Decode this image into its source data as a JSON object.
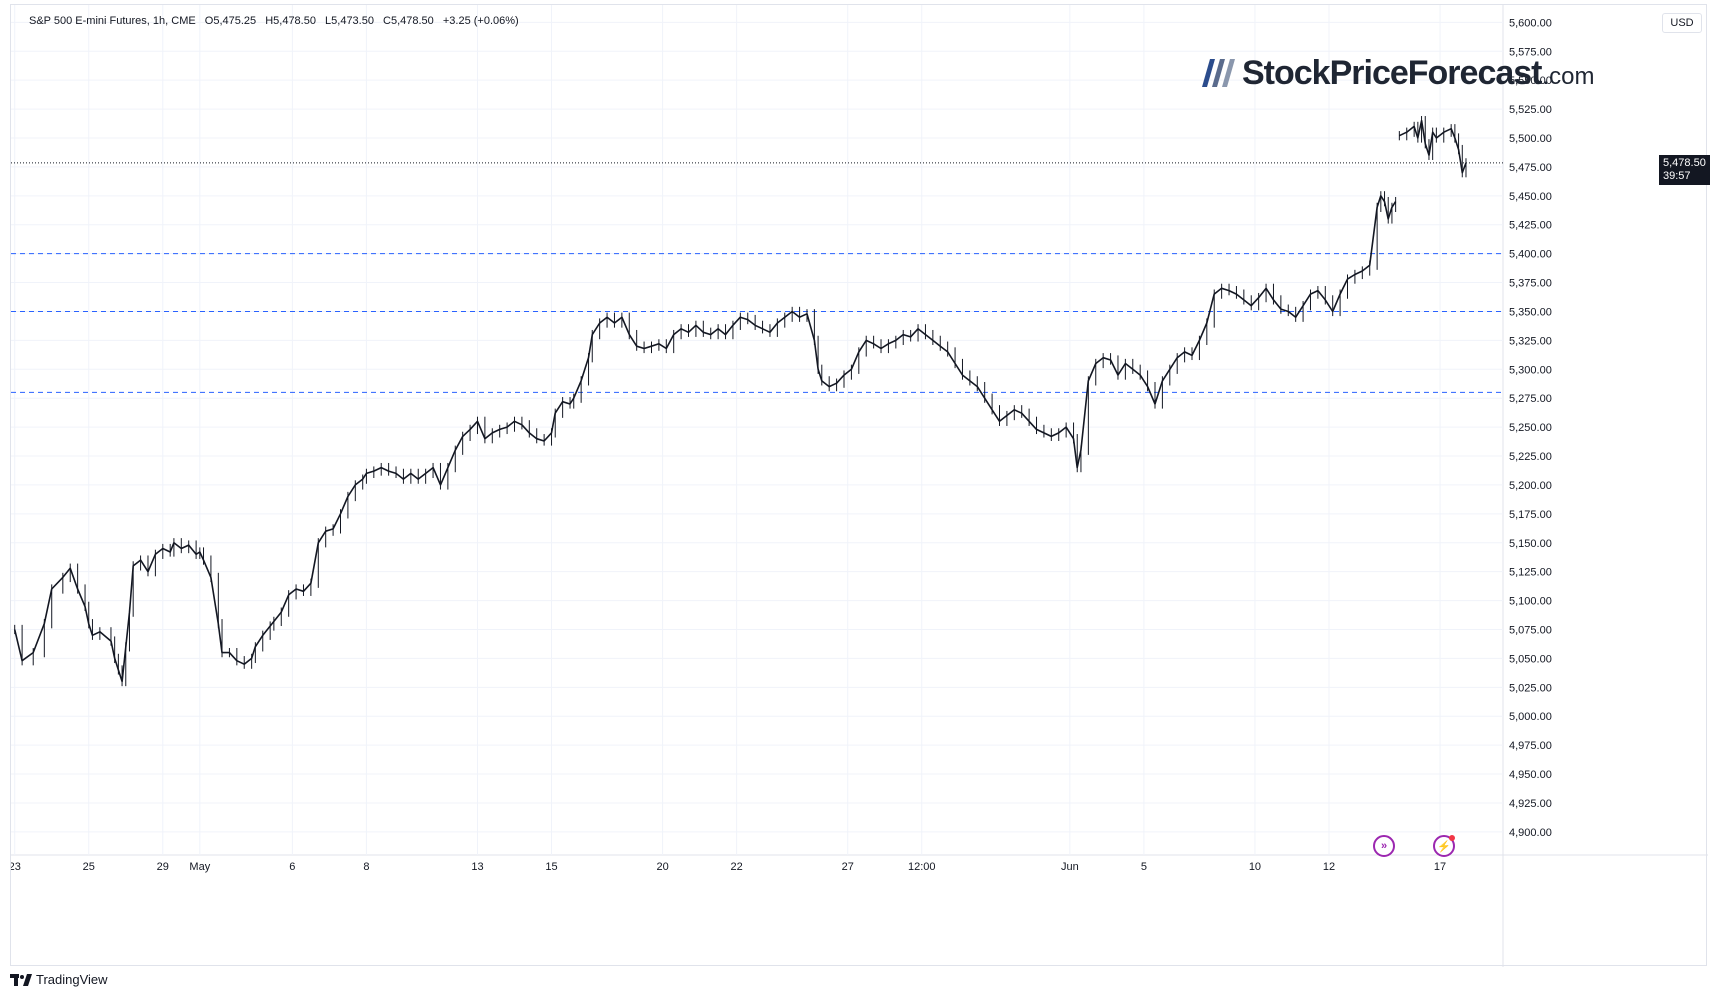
{
  "header": {
    "instrument": "S&P 500 E-mini Futures, 1h, CME",
    "open": "O5,475.25",
    "high": "H5,478.50",
    "low": "L5,473.50",
    "close": "C5,478.50",
    "change": "+3.25 (+0.06%)"
  },
  "currency": "USD",
  "brand": {
    "name": "StockPriceForecast",
    "tld": ".com"
  },
  "price_label": {
    "value": "5,478.50",
    "countdown": "39:57"
  },
  "footer": {
    "logo_text": "TradingView"
  },
  "colors": {
    "candles": "#131722",
    "support": "#2962ff",
    "price_line": "#131722",
    "accent": "#9c27b0"
  },
  "icons": [
    "replay-icon",
    "alert-icon"
  ],
  "chart_data": {
    "type": "candlestick-line",
    "title": "S&P 500 E-mini Futures, 1h, CME",
    "xlabel": "",
    "ylabel": "",
    "ylim": [
      4880,
      5615
    ],
    "yticks": [
      "5,600.00",
      "5,575.00",
      "5,550.00",
      "5,525.00",
      "5,500.00",
      "5,475.00",
      "5,450.00",
      "5,425.00",
      "5,400.00",
      "5,375.00",
      "5,350.00",
      "5,325.00",
      "5,300.00",
      "5,275.00",
      "5,250.00",
      "5,225.00",
      "5,200.00",
      "5,175.00",
      "5,150.00",
      "5,125.00",
      "5,100.00",
      "5,075.00",
      "5,050.00",
      "5,025.00",
      "5,000.00",
      "4,975.00",
      "4,950.00",
      "4,925.00",
      "4,900.00"
    ],
    "xticks": [
      {
        "label": "23",
        "pos": 0.0
      },
      {
        "label": "25",
        "pos": 2.0
      },
      {
        "label": "29",
        "pos": 4.0
      },
      {
        "label": "May",
        "pos": 5.0
      },
      {
        "label": "6",
        "pos": 7.5
      },
      {
        "label": "8",
        "pos": 9.5
      },
      {
        "label": "13",
        "pos": 12.5
      },
      {
        "label": "15",
        "pos": 14.5
      },
      {
        "label": "20",
        "pos": 17.5
      },
      {
        "label": "22",
        "pos": 19.5
      },
      {
        "label": "27",
        "pos": 22.5
      },
      {
        "label": "12:00",
        "pos": 24.5
      },
      {
        "label": "Jun",
        "pos": 28.5
      },
      {
        "label": "5",
        "pos": 30.5
      },
      {
        "label": "10",
        "pos": 33.5
      },
      {
        "label": "12",
        "pos": 35.5
      },
      {
        "label": "17",
        "pos": 38.5
      }
    ],
    "x_span": [
      -0.1,
      40.2
    ],
    "support_levels": [
      5400,
      5350,
      5280
    ],
    "last_price": 5478.5,
    "series": [
      {
        "points": [
          [
            0.0,
            5075
          ],
          [
            0.2,
            5048
          ],
          [
            0.5,
            5055
          ],
          [
            0.8,
            5080
          ],
          [
            1.0,
            5110
          ],
          [
            1.3,
            5120
          ],
          [
            1.5,
            5128
          ],
          [
            1.7,
            5110
          ],
          [
            1.9,
            5095
          ],
          [
            2.0,
            5080
          ],
          [
            2.1,
            5070
          ],
          [
            2.3,
            5073
          ],
          [
            2.6,
            5065
          ],
          [
            2.7,
            5050
          ],
          [
            2.8,
            5040
          ],
          [
            2.9,
            5030
          ],
          [
            3.0,
            5060
          ],
          [
            3.1,
            5090
          ],
          [
            3.2,
            5130
          ],
          [
            3.4,
            5135
          ],
          [
            3.6,
            5125
          ],
          [
            3.8,
            5140
          ],
          [
            4.0,
            5145
          ],
          [
            4.2,
            5142
          ],
          [
            4.3,
            5150
          ],
          [
            4.5,
            5145
          ],
          [
            4.7,
            5148
          ],
          [
            4.9,
            5140
          ],
          [
            5.0,
            5142
          ],
          [
            5.1,
            5135
          ],
          [
            5.3,
            5120
          ],
          [
            5.5,
            5080
          ],
          [
            5.6,
            5055
          ],
          [
            5.8,
            5055
          ],
          [
            6.0,
            5048
          ],
          [
            6.2,
            5045
          ],
          [
            6.4,
            5050
          ],
          [
            6.5,
            5060
          ],
          [
            6.7,
            5070
          ],
          [
            6.9,
            5078
          ],
          [
            7.0,
            5082
          ],
          [
            7.2,
            5090
          ],
          [
            7.4,
            5105
          ],
          [
            7.6,
            5110
          ],
          [
            7.8,
            5108
          ],
          [
            8.0,
            5115
          ],
          [
            8.2,
            5150
          ],
          [
            8.4,
            5160
          ],
          [
            8.6,
            5162
          ],
          [
            8.8,
            5175
          ],
          [
            9.0,
            5190
          ],
          [
            9.2,
            5200
          ],
          [
            9.4,
            5205
          ],
          [
            9.5,
            5210
          ],
          [
            9.7,
            5212
          ],
          [
            9.9,
            5215
          ],
          [
            10.1,
            5212
          ],
          [
            10.3,
            5210
          ],
          [
            10.5,
            5205
          ],
          [
            10.7,
            5210
          ],
          [
            10.9,
            5205
          ],
          [
            11.1,
            5210
          ],
          [
            11.3,
            5215
          ],
          [
            11.5,
            5200
          ],
          [
            11.7,
            5215
          ],
          [
            11.9,
            5230
          ],
          [
            12.1,
            5242
          ],
          [
            12.3,
            5248
          ],
          [
            12.5,
            5255
          ],
          [
            12.7,
            5240
          ],
          [
            12.9,
            5245
          ],
          [
            13.1,
            5248
          ],
          [
            13.3,
            5250
          ],
          [
            13.5,
            5255
          ],
          [
            13.7,
            5252
          ],
          [
            13.9,
            5245
          ],
          [
            14.1,
            5240
          ],
          [
            14.3,
            5238
          ],
          [
            14.5,
            5245
          ],
          [
            14.6,
            5262
          ],
          [
            14.8,
            5272
          ],
          [
            15.0,
            5270
          ],
          [
            15.1,
            5275
          ],
          [
            15.3,
            5290
          ],
          [
            15.5,
            5310
          ],
          [
            15.6,
            5330
          ],
          [
            15.8,
            5340
          ],
          [
            16.0,
            5345
          ],
          [
            16.2,
            5340
          ],
          [
            16.4,
            5345
          ],
          [
            16.6,
            5330
          ],
          [
            16.8,
            5320
          ],
          [
            17.0,
            5318
          ],
          [
            17.2,
            5320
          ],
          [
            17.4,
            5322
          ],
          [
            17.6,
            5318
          ],
          [
            17.8,
            5330
          ],
          [
            18.0,
            5335
          ],
          [
            18.2,
            5332
          ],
          [
            18.4,
            5338
          ],
          [
            18.6,
            5332
          ],
          [
            18.8,
            5330
          ],
          [
            19.0,
            5335
          ],
          [
            19.2,
            5330
          ],
          [
            19.4,
            5338
          ],
          [
            19.6,
            5345
          ],
          [
            19.8,
            5343
          ],
          [
            20.0,
            5338
          ],
          [
            20.2,
            5335
          ],
          [
            20.4,
            5332
          ],
          [
            20.6,
            5340
          ],
          [
            20.8,
            5345
          ],
          [
            21.0,
            5350
          ],
          [
            21.2,
            5345
          ],
          [
            21.4,
            5348
          ],
          [
            21.6,
            5325
          ],
          [
            21.7,
            5300
          ],
          [
            21.8,
            5290
          ],
          [
            22.0,
            5285
          ],
          [
            22.2,
            5288
          ],
          [
            22.4,
            5295
          ],
          [
            22.6,
            5300
          ],
          [
            22.8,
            5315
          ],
          [
            23.0,
            5325
          ],
          [
            23.2,
            5322
          ],
          [
            23.4,
            5318
          ],
          [
            23.6,
            5322
          ],
          [
            23.8,
            5325
          ],
          [
            24.0,
            5330
          ],
          [
            24.2,
            5328
          ],
          [
            24.4,
            5335
          ],
          [
            24.6,
            5330
          ],
          [
            24.8,
            5325
          ],
          [
            25.0,
            5320
          ],
          [
            25.2,
            5315
          ],
          [
            25.4,
            5305
          ],
          [
            25.6,
            5295
          ],
          [
            25.8,
            5290
          ],
          [
            26.0,
            5285
          ],
          [
            26.2,
            5275
          ],
          [
            26.4,
            5265
          ],
          [
            26.6,
            5255
          ],
          [
            26.8,
            5260
          ],
          [
            27.0,
            5265
          ],
          [
            27.2,
            5262
          ],
          [
            27.4,
            5255
          ],
          [
            27.6,
            5248
          ],
          [
            27.8,
            5245
          ],
          [
            28.0,
            5242
          ],
          [
            28.2,
            5245
          ],
          [
            28.4,
            5250
          ],
          [
            28.6,
            5240
          ],
          [
            28.7,
            5215
          ],
          [
            28.8,
            5230
          ],
          [
            29.0,
            5290
          ],
          [
            29.2,
            5305
          ],
          [
            29.4,
            5310
          ],
          [
            29.6,
            5308
          ],
          [
            29.8,
            5295
          ],
          [
            30.0,
            5305
          ],
          [
            30.2,
            5300
          ],
          [
            30.4,
            5295
          ],
          [
            30.6,
            5285
          ],
          [
            30.8,
            5270
          ],
          [
            31.0,
            5290
          ],
          [
            31.2,
            5300
          ],
          [
            31.4,
            5310
          ],
          [
            31.6,
            5315
          ],
          [
            31.8,
            5312
          ],
          [
            32.0,
            5325
          ],
          [
            32.2,
            5340
          ],
          [
            32.4,
            5365
          ],
          [
            32.6,
            5370
          ],
          [
            32.8,
            5368
          ],
          [
            33.0,
            5365
          ],
          [
            33.2,
            5360
          ],
          [
            33.4,
            5355
          ],
          [
            33.6,
            5362
          ],
          [
            33.8,
            5370
          ],
          [
            34.0,
            5360
          ],
          [
            34.2,
            5352
          ],
          [
            34.4,
            5350
          ],
          [
            34.6,
            5345
          ],
          [
            34.8,
            5355
          ],
          [
            35.0,
            5365
          ],
          [
            35.2,
            5368
          ],
          [
            35.4,
            5360
          ],
          [
            35.6,
            5350
          ],
          [
            35.8,
            5365
          ],
          [
            36.0,
            5378
          ],
          [
            36.2,
            5382
          ],
          [
            36.4,
            5385
          ],
          [
            36.6,
            5390
          ],
          [
            36.8,
            5440
          ],
          [
            36.9,
            5450
          ],
          [
            37.0,
            5445
          ],
          [
            37.1,
            5430
          ],
          [
            37.2,
            5440
          ],
          [
            37.3,
            5445
          ]
        ]
      },
      {
        "points": [
          [
            37.4,
            5502
          ],
          [
            37.6,
            5505
          ],
          [
            37.8,
            5510
          ],
          [
            37.9,
            5500
          ],
          [
            38.0,
            5515
          ],
          [
            38.1,
            5495
          ],
          [
            38.2,
            5485
          ],
          [
            38.3,
            5505
          ],
          [
            38.4,
            5500
          ],
          [
            38.6,
            5505
          ],
          [
            38.8,
            5508
          ],
          [
            38.9,
            5500
          ],
          [
            39.0,
            5490
          ],
          [
            39.1,
            5470
          ],
          [
            39.2,
            5478.5
          ]
        ]
      }
    ]
  }
}
